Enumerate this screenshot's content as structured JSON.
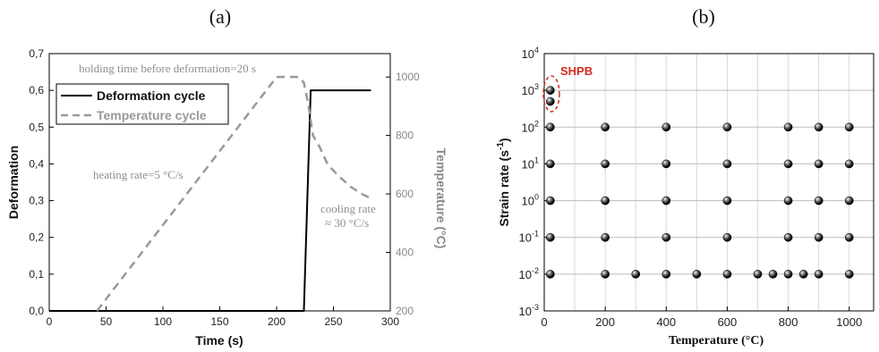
{
  "panel_a_label": "(a)",
  "panel_b_label": "(b)",
  "chart_data": [
    {
      "type": "line",
      "xlabel": "Time (s)",
      "ylabel": "Deformation",
      "y2label": "Temperature (°C)",
      "xlim": [
        0,
        300
      ],
      "ylim": [
        0,
        0.7
      ],
      "y2lim": [
        200,
        1080
      ],
      "xticks": [
        "0",
        "50",
        "100",
        "150",
        "200",
        "250",
        "300"
      ],
      "yticks": [
        "0,0",
        "0,1",
        "0,2",
        "0,3",
        "0,4",
        "0,5",
        "0,6",
        "0,7"
      ],
      "y2ticks": [
        "200",
        "400",
        "600",
        "800",
        "1000"
      ],
      "legend_position": "top-left",
      "series": [
        {
          "name": "Deformation cycle",
          "axis": "left",
          "style": "solid",
          "color": "#000000",
          "x": [
            0,
            224,
            230,
            283
          ],
          "y": [
            0,
            0,
            0.6,
            0.6
          ]
        },
        {
          "name": "Temperature cycle",
          "axis": "right",
          "style": "dashed",
          "color": "#999999",
          "x": [
            42,
            200,
            220,
            224,
            228,
            232,
            238,
            245,
            255,
            265,
            275,
            283
          ],
          "y": [
            200,
            1000,
            1000,
            980,
            905,
            800,
            760,
            700,
            660,
            625,
            600,
            585
          ]
        }
      ],
      "annotations": [
        "holding time before deformation=20 s",
        "heating rate=5 °C/s",
        "cooling rate",
        "≈ 30 °C/s"
      ]
    },
    {
      "type": "scatter",
      "xlabel": "Temperature (°C)",
      "ylabel": "Strain rate (s⁻¹)",
      "xlim": [
        0,
        1080
      ],
      "ylim_log10": [
        -3,
        4
      ],
      "yscale": "log",
      "grid": true,
      "xticks": [
        "0",
        "200",
        "400",
        "600",
        "800",
        "1000"
      ],
      "yticks_exponent": [
        "-3",
        "-2",
        "-1",
        "0",
        "1",
        "2",
        "3",
        "4"
      ],
      "ytick_base": "10",
      "annotation": "SHPB",
      "points": [
        {
          "x": 20,
          "y": 1000
        },
        {
          "x": 20,
          "y": 500
        },
        {
          "x": 20,
          "y": 100
        },
        {
          "x": 200,
          "y": 100
        },
        {
          "x": 400,
          "y": 100
        },
        {
          "x": 600,
          "y": 100
        },
        {
          "x": 800,
          "y": 100
        },
        {
          "x": 900,
          "y": 100
        },
        {
          "x": 1000,
          "y": 100
        },
        {
          "x": 20,
          "y": 10
        },
        {
          "x": 200,
          "y": 10
        },
        {
          "x": 400,
          "y": 10
        },
        {
          "x": 600,
          "y": 10
        },
        {
          "x": 800,
          "y": 10
        },
        {
          "x": 900,
          "y": 10
        },
        {
          "x": 1000,
          "y": 10
        },
        {
          "x": 20,
          "y": 1
        },
        {
          "x": 200,
          "y": 1
        },
        {
          "x": 400,
          "y": 1
        },
        {
          "x": 600,
          "y": 1
        },
        {
          "x": 800,
          "y": 1
        },
        {
          "x": 900,
          "y": 1
        },
        {
          "x": 1000,
          "y": 1
        },
        {
          "x": 20,
          "y": 0.1
        },
        {
          "x": 200,
          "y": 0.1
        },
        {
          "x": 400,
          "y": 0.1
        },
        {
          "x": 600,
          "y": 0.1
        },
        {
          "x": 800,
          "y": 0.1
        },
        {
          "x": 900,
          "y": 0.1
        },
        {
          "x": 1000,
          "y": 0.1
        },
        {
          "x": 20,
          "y": 0.01
        },
        {
          "x": 200,
          "y": 0.01
        },
        {
          "x": 300,
          "y": 0.01
        },
        {
          "x": 400,
          "y": 0.01
        },
        {
          "x": 500,
          "y": 0.01
        },
        {
          "x": 600,
          "y": 0.01
        },
        {
          "x": 700,
          "y": 0.01
        },
        {
          "x": 750,
          "y": 0.01
        },
        {
          "x": 800,
          "y": 0.01
        },
        {
          "x": 850,
          "y": 0.01
        },
        {
          "x": 900,
          "y": 0.01
        },
        {
          "x": 1000,
          "y": 0.01
        }
      ]
    }
  ]
}
